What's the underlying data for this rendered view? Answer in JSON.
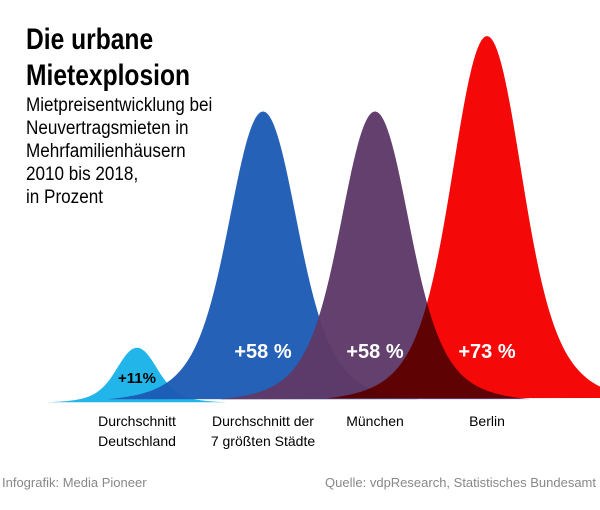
{
  "title_line1": "Die urbane",
  "title_line2": "Mietexplosion",
  "subtitle": "Mietpreisentwicklung bei\nNeuvertragsmieten in\nMehrfamilienhäusern\n2010 bis 2018,\nin Prozent",
  "footer": {
    "credit": "Infografik: Media Pioneer",
    "source": "Quelle: vdpResearch, Statistisches Bundesamt"
  },
  "chart_data": {
    "type": "area",
    "title": "Die urbane Mietexplosion",
    "subtitle": "Mietpreisentwicklung bei Neuvertragsmieten in Mehrfamilienhäusern 2010 bis 2018, in Prozent",
    "unit": "Prozent",
    "categories": [
      "Durchschnitt Deutschland",
      "Durchschnitt der 7 größten Städte",
      "München",
      "Berlin"
    ],
    "category_labels": [
      [
        "Durchschnitt",
        "Deutschland"
      ],
      [
        "Durchschnitt der",
        "7 größten Städte"
      ],
      [
        "München"
      ],
      [
        "Berlin"
      ]
    ],
    "values": [
      11,
      58,
      58,
      73
    ],
    "value_labels": [
      "+11%",
      "+58 %",
      "+58 %",
      "+73 %"
    ],
    "colors": [
      "#1bb3e8",
      "#1d5cb5",
      "#5e3a68",
      "#f40000"
    ],
    "ylim": [
      0,
      75
    ]
  }
}
